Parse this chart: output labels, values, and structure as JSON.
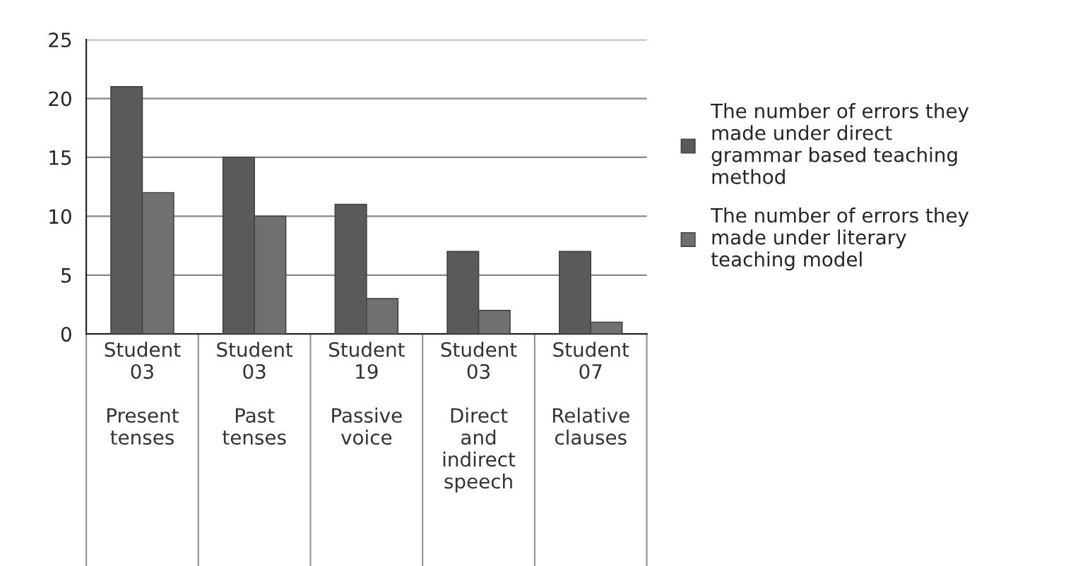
{
  "chart_data": {
    "type": "bar",
    "categories": [
      "Student\n03\n\nPresent\ntenses",
      "Student\n03\n\nPast\ntenses",
      "Student\n19\n\nPassive\nvoice",
      "Student\n03\n\nDirect\nand\nindirect\nspeech",
      "Student\n07\n\nRelative\nclauses"
    ],
    "series": [
      {
        "name": "The number of errors they\nmade under direct\ngrammar based teaching\nmethod",
        "color": "#5a5a5a",
        "values": [
          21,
          15,
          11,
          7,
          7
        ]
      },
      {
        "name": "The number of errors they\nmade under literary\nteaching model",
        "color": "#707070",
        "values": [
          12,
          10,
          3,
          2,
          1
        ]
      }
    ],
    "ylim": [
      0,
      25
    ],
    "yticks": [
      0,
      5,
      10,
      15,
      20,
      25
    ],
    "grid": "y",
    "legend": "right"
  }
}
